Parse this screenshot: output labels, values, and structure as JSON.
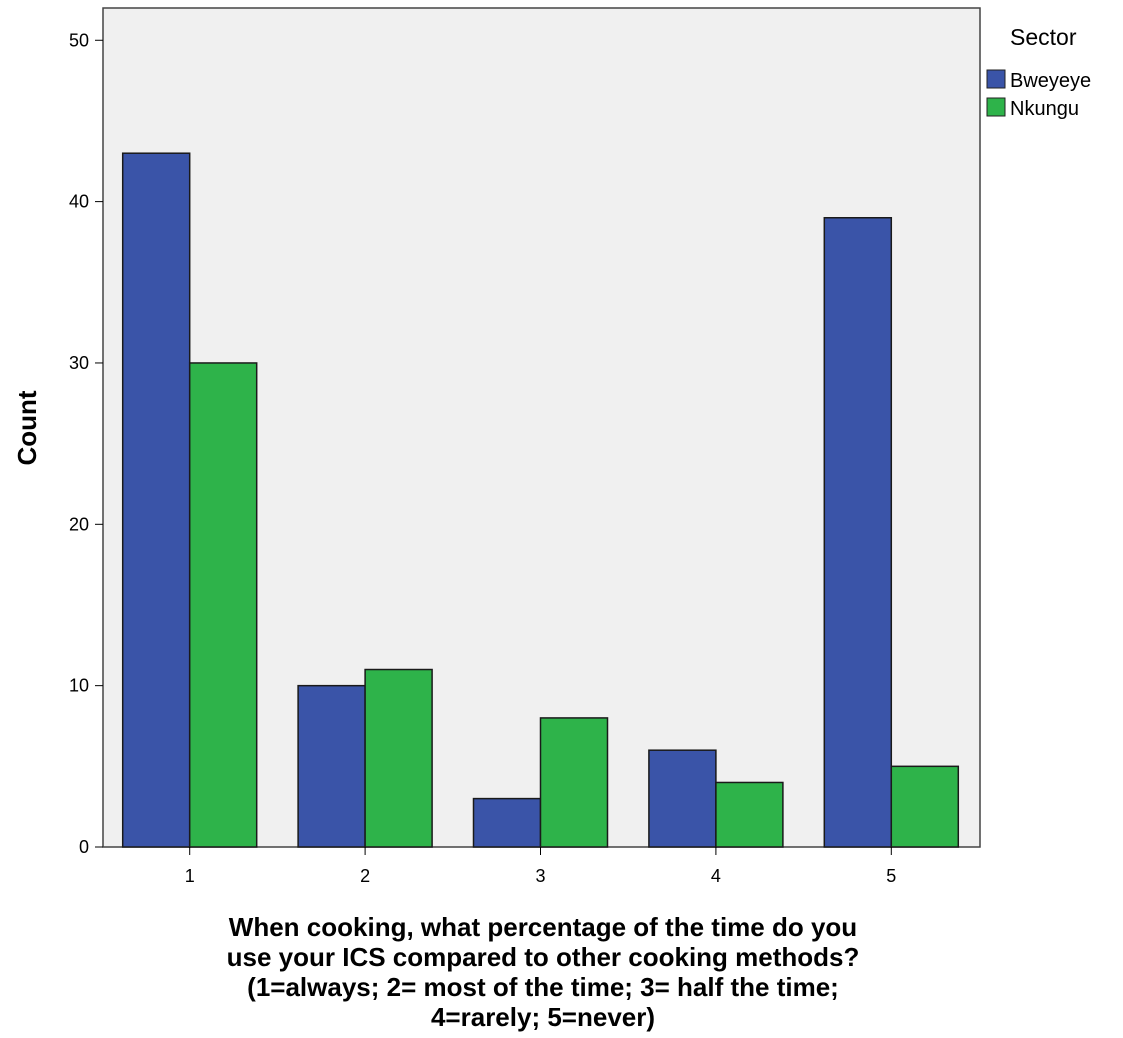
{
  "chart_data": {
    "type": "bar",
    "categories": [
      "1",
      "2",
      "3",
      "4",
      "5"
    ],
    "series": [
      {
        "name": "Bweyeye",
        "values": [
          43,
          10,
          3,
          6,
          39
        ],
        "color": "#3a54a8"
      },
      {
        "name": "Nkungu",
        "values": [
          30,
          11,
          8,
          4,
          5
        ],
        "color": "#2eb34a"
      }
    ],
    "ylabel": "Count",
    "xlabel_lines": [
      "When cooking, what percentage of the time do you",
      "use your ICS compared to other cooking methods?",
      "(1=always; 2= most of the time; 3= half the time;",
      "4=rarely; 5=never)"
    ],
    "ylim": [
      0,
      52
    ],
    "yticks": [
      0,
      10,
      20,
      30,
      40,
      50
    ],
    "legend_title": "Sector",
    "legend_position": "right",
    "plot_background": "#f0f0f0",
    "grid": false
  }
}
